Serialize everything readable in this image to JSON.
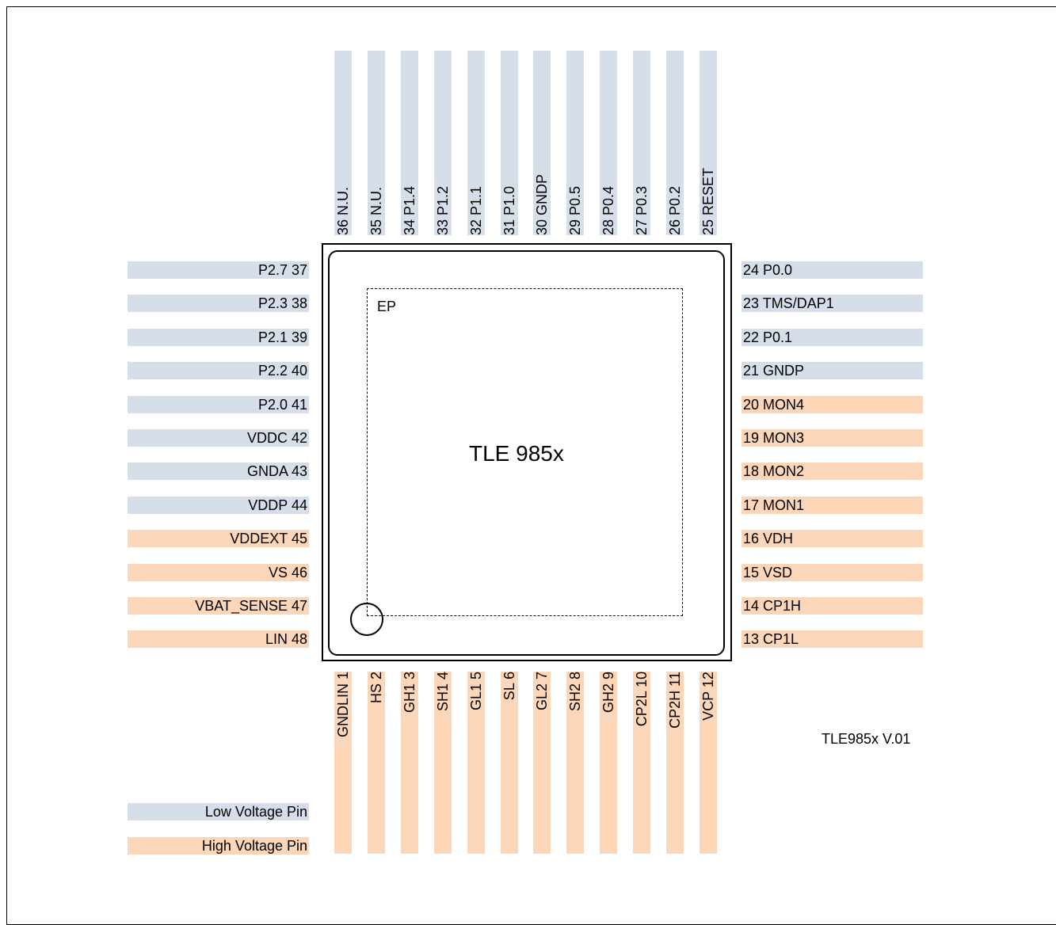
{
  "colors": {
    "low_voltage": "#d6dfe9",
    "high_voltage": "#fbd6b9"
  },
  "chip_name": "TLE 985x",
  "ep_label": "EP",
  "version": "TLE985x V.01",
  "legend": [
    {
      "label": "Low Voltage Pin",
      "type": "low"
    },
    {
      "label": "High Voltage Pin",
      "type": "high"
    }
  ],
  "pins": {
    "top": [
      {
        "label": "36 N.U.",
        "type": "low"
      },
      {
        "label": "35 N.U.",
        "type": "low"
      },
      {
        "label": "34 P1.4",
        "type": "low"
      },
      {
        "label": "33 P1.2",
        "type": "low"
      },
      {
        "label": "32 P1.1",
        "type": "low"
      },
      {
        "label": "31 P1.0",
        "type": "low"
      },
      {
        "label": "30  GNDP",
        "type": "low"
      },
      {
        "label": "29 P0.5",
        "type": "low"
      },
      {
        "label": "28 P0.4",
        "type": "low"
      },
      {
        "label": "27 P0.3",
        "type": "low"
      },
      {
        "label": "26 P0.2",
        "type": "low"
      },
      {
        "label": "25 RESET",
        "type": "low"
      }
    ],
    "left": [
      {
        "label": "P2.7 37",
        "type": "low"
      },
      {
        "label": "P2.3 38",
        "type": "low"
      },
      {
        "label": "P2.1 39",
        "type": "low"
      },
      {
        "label": "P2.2 40",
        "type": "low"
      },
      {
        "label": "P2.0 41",
        "type": "low"
      },
      {
        "label": "VDDC 42",
        "type": "low"
      },
      {
        "label": "GNDA 43",
        "type": "low"
      },
      {
        "label": "VDDP 44",
        "type": "low"
      },
      {
        "label": "VDDEXT 45",
        "type": "high"
      },
      {
        "label": "VS 46",
        "type": "high"
      },
      {
        "label": "VBAT_SENSE 47",
        "type": "high"
      },
      {
        "label": "LIN 48",
        "type": "high"
      }
    ],
    "right": [
      {
        "label": "24 P0.0",
        "type": "low"
      },
      {
        "label": "23 TMS/DAP1",
        "type": "low"
      },
      {
        "label": "22 P0.1",
        "type": "low"
      },
      {
        "label": "21 GNDP",
        "type": "low"
      },
      {
        "label": "20 MON4",
        "type": "high"
      },
      {
        "label": "19 MON3",
        "type": "high"
      },
      {
        "label": "18 MON2",
        "type": "high"
      },
      {
        "label": "17 MON1",
        "type": "high"
      },
      {
        "label": "16 VDH",
        "type": "high"
      },
      {
        "label": "15 VSD",
        "type": "high"
      },
      {
        "label": "14 CP1H",
        "type": "high"
      },
      {
        "label": "13 CP1L",
        "type": "high"
      }
    ],
    "bottom": [
      {
        "label": "GNDLIN 1",
        "type": "high"
      },
      {
        "label": "HS 2",
        "type": "high"
      },
      {
        "label": "GH1 3",
        "type": "high"
      },
      {
        "label": "SH1 4",
        "type": "high"
      },
      {
        "label": "GL1 5",
        "type": "high"
      },
      {
        "label": "SL 6",
        "type": "high"
      },
      {
        "label": "GL2 7",
        "type": "high"
      },
      {
        "label": "SH2 8",
        "type": "high"
      },
      {
        "label": "GH2 9",
        "type": "high"
      },
      {
        "label": "CP2L 10",
        "type": "high"
      },
      {
        "label": "CP2H 11",
        "type": "high"
      },
      {
        "label": "VCP 12",
        "type": "high"
      }
    ]
  }
}
